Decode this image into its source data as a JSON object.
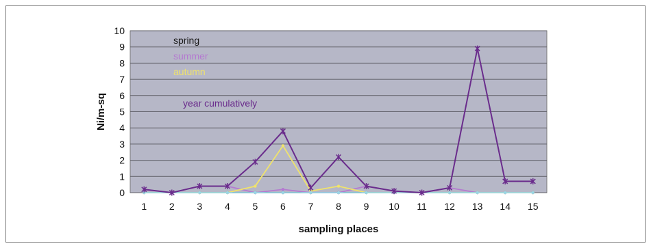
{
  "chart_data": {
    "type": "line",
    "title": "",
    "xlabel": "sampling places",
    "ylabel": "Ni/m-sq",
    "ylim": [
      0,
      10
    ],
    "yticks": [
      0,
      1,
      2,
      3,
      4,
      5,
      6,
      7,
      8,
      9,
      10
    ],
    "x": [
      1,
      2,
      3,
      4,
      5,
      6,
      7,
      8,
      9,
      10,
      11,
      12,
      13,
      14,
      15
    ],
    "grid": true,
    "legend": "inside top-left",
    "plot_background": "#b6b7c7",
    "series": [
      {
        "name": "spring",
        "color": "#1a1a1a",
        "values": [
          0,
          0,
          0,
          0,
          0,
          0,
          0,
          0,
          0,
          0,
          0,
          0,
          0,
          0,
          0
        ]
      },
      {
        "name": "summer",
        "color": "#b47ad0",
        "values": [
          0.2,
          0,
          0.4,
          0.4,
          0,
          0.2,
          0,
          0,
          0.4,
          0.1,
          0,
          0.3,
          0,
          0,
          0
        ]
      },
      {
        "name": "autumn",
        "color": "#f0e36b",
        "values": [
          0,
          0,
          0,
          0,
          0.4,
          2.9,
          0.1,
          0.4,
          0,
          0,
          0,
          0,
          0,
          0,
          0
        ]
      },
      {
        "name": "",
        "color": "#9ad6e6",
        "values": [
          0,
          0,
          0,
          0,
          0,
          0,
          0,
          0,
          0,
          0,
          0,
          0,
          0,
          0,
          0
        ]
      },
      {
        "name": "year cumulatively",
        "color": "#6a2c8c",
        "values": [
          0.2,
          0,
          0.4,
          0.4,
          1.9,
          3.8,
          0.3,
          2.2,
          0.4,
          0.1,
          0,
          0.3,
          8.9,
          0.7,
          0.7
        ]
      }
    ]
  }
}
